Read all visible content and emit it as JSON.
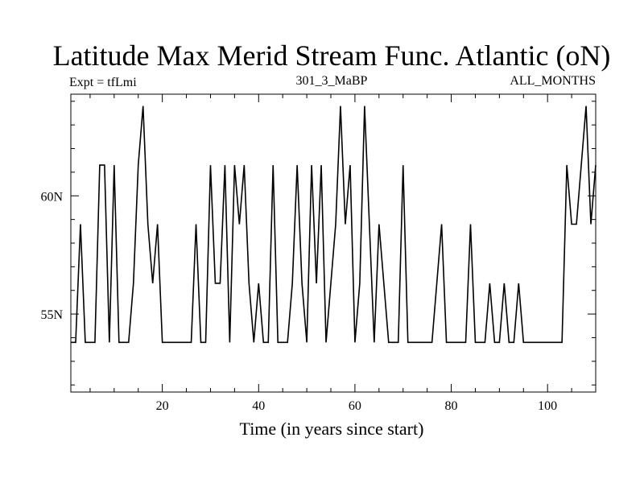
{
  "chart_data": {
    "type": "line",
    "title": "Latitude Max Merid Stream Func. Atlantic (oN)",
    "subtitle_left": "Expt = tfLmi",
    "subtitle_center": "301_3_MaBP",
    "subtitle_right": "ALL_MONTHS",
    "xlabel": "Time (in years since start)",
    "ylabel": "",
    "xlim": [
      1,
      110
    ],
    "ylim": [
      51.7,
      64.3
    ],
    "x_ticks": [
      20,
      40,
      60,
      80,
      100
    ],
    "x_tick_labels": [
      "20",
      "40",
      "60",
      "80",
      "100"
    ],
    "y_ticks": [
      55,
      60
    ],
    "y_tick_labels": [
      "55N",
      "60N"
    ],
    "y_minor_ticks": [
      52,
      53,
      54,
      56,
      57,
      58,
      59,
      61,
      62,
      63,
      64
    ],
    "grid": false,
    "color": "#000000",
    "x": [
      1,
      2,
      3,
      4,
      5,
      6,
      7,
      8,
      9,
      10,
      11,
      12,
      13,
      14,
      15,
      16,
      17,
      18,
      19,
      20,
      21,
      22,
      23,
      24,
      25,
      26,
      27,
      28,
      29,
      30,
      31,
      32,
      33,
      34,
      35,
      36,
      37,
      38,
      39,
      40,
      41,
      42,
      43,
      44,
      45,
      46,
      47,
      48,
      49,
      50,
      51,
      52,
      53,
      54,
      55,
      56,
      57,
      58,
      59,
      60,
      61,
      62,
      63,
      64,
      65,
      66,
      67,
      68,
      69,
      70,
      71,
      72,
      73,
      74,
      75,
      76,
      77,
      78,
      79,
      80,
      81,
      82,
      83,
      84,
      85,
      86,
      87,
      88,
      89,
      90,
      91,
      92,
      93,
      94,
      95,
      96,
      97,
      98,
      99,
      100,
      101,
      102,
      103,
      104,
      105,
      106,
      107,
      108,
      109,
      110
    ],
    "y": [
      53.8,
      53.8,
      58.8,
      53.8,
      53.8,
      53.8,
      61.3,
      61.3,
      53.8,
      61.3,
      53.8,
      53.8,
      53.8,
      56.3,
      61.3,
      63.8,
      58.8,
      56.3,
      58.8,
      53.8,
      53.8,
      53.8,
      53.8,
      53.8,
      53.8,
      53.8,
      58.8,
      53.8,
      53.8,
      61.3,
      56.3,
      56.3,
      61.3,
      53.8,
      61.3,
      58.8,
      61.3,
      56.3,
      53.8,
      56.3,
      53.8,
      53.8,
      61.3,
      53.8,
      53.8,
      53.8,
      56.3,
      61.3,
      56.3,
      53.8,
      61.3,
      56.3,
      61.3,
      53.8,
      56.3,
      58.8,
      63.8,
      58.8,
      61.3,
      53.8,
      56.3,
      63.8,
      58.8,
      53.8,
      58.8,
      56.3,
      53.8,
      53.8,
      53.8,
      61.3,
      53.8,
      53.8,
      53.8,
      53.8,
      53.8,
      53.8,
      56.3,
      58.8,
      53.8,
      53.8,
      53.8,
      53.8,
      53.8,
      58.8,
      53.8,
      53.8,
      53.8,
      56.3,
      53.8,
      53.8,
      56.3,
      53.8,
      53.8,
      56.3,
      53.8,
      53.8,
      53.8,
      53.8,
      53.8,
      53.8,
      53.8,
      53.8,
      53.8,
      61.3,
      58.8,
      58.8,
      61.3,
      63.8,
      58.8,
      61.3
    ]
  }
}
